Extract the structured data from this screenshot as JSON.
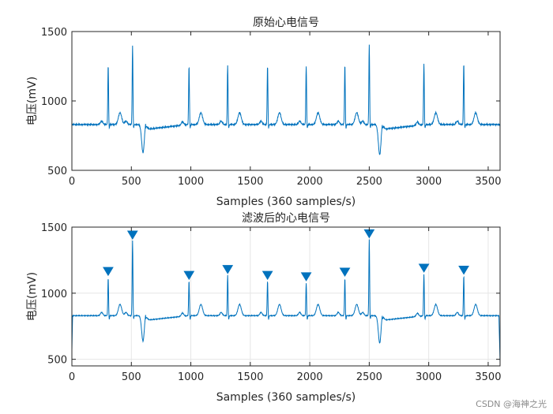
{
  "watermark": "CSDN @海神之光",
  "chart_data": [
    {
      "type": "line",
      "title": "原始心电信号",
      "xlabel": "Samples (360 samples/s)",
      "ylabel": "电压(mV)",
      "xlim": [
        0,
        3600
      ],
      "ylim": [
        500,
        1500
      ],
      "xticks": [
        0,
        500,
        1000,
        1500,
        2000,
        2500,
        3000,
        3500
      ],
      "yticks": [
        500,
        1000,
        1500
      ],
      "grid": false,
      "color": "#0072bd",
      "series": [
        {
          "baseline": 830,
          "r_peaks": [
            {
              "x": 305,
              "y": 1265
            },
            {
              "x": 510,
              "y": 1400
            },
            {
              "x": 985,
              "y": 1255
            },
            {
              "x": 1310,
              "y": 1260
            },
            {
              "x": 1645,
              "y": 1260
            },
            {
              "x": 1970,
              "y": 1255
            },
            {
              "x": 2295,
              "y": 1265
            },
            {
              "x": 2500,
              "y": 1410
            },
            {
              "x": 2960,
              "y": 1270
            },
            {
              "x": 3295,
              "y": 1275
            }
          ],
          "troughs": [
            {
              "x": 600,
              "y": 565
            },
            {
              "x": 2590,
              "y": 550
            }
          ]
        }
      ]
    },
    {
      "type": "line",
      "title": "滤波后的心电信号",
      "xlabel": "Samples (360 samples/s)",
      "ylabel": "电压(mV)",
      "xlim": [
        0,
        3600
      ],
      "ylim": [
        450,
        1500
      ],
      "xticks": [
        0,
        500,
        1000,
        1500,
        2000,
        2500,
        3000,
        3500
      ],
      "yticks": [
        500,
        1000,
        1500
      ],
      "grid": true,
      "color": "#0072bd",
      "series": [
        {
          "baseline": 830,
          "r_peaks": [
            {
              "x": 305,
              "y": 1120
            },
            {
              "x": 510,
              "y": 1400
            },
            {
              "x": 985,
              "y": 1095
            },
            {
              "x": 1310,
              "y": 1140
            },
            {
              "x": 1645,
              "y": 1095
            },
            {
              "x": 1970,
              "y": 1080
            },
            {
              "x": 2295,
              "y": 1115
            },
            {
              "x": 2500,
              "y": 1410
            },
            {
              "x": 2960,
              "y": 1145
            },
            {
              "x": 3295,
              "y": 1135
            }
          ],
          "troughs": [
            {
              "x": 600,
              "y": 575
            },
            {
              "x": 2590,
              "y": 560
            }
          ]
        }
      ],
      "markers": {
        "shape": "triangle-down",
        "points": [
          {
            "x": 305,
            "y": 1165
          },
          {
            "x": 510,
            "y": 1440
          },
          {
            "x": 985,
            "y": 1135
          },
          {
            "x": 1310,
            "y": 1180
          },
          {
            "x": 1645,
            "y": 1135
          },
          {
            "x": 1970,
            "y": 1125
          },
          {
            "x": 2295,
            "y": 1160
          },
          {
            "x": 2500,
            "y": 1450
          },
          {
            "x": 2960,
            "y": 1190
          },
          {
            "x": 3295,
            "y": 1175
          }
        ]
      }
    }
  ]
}
